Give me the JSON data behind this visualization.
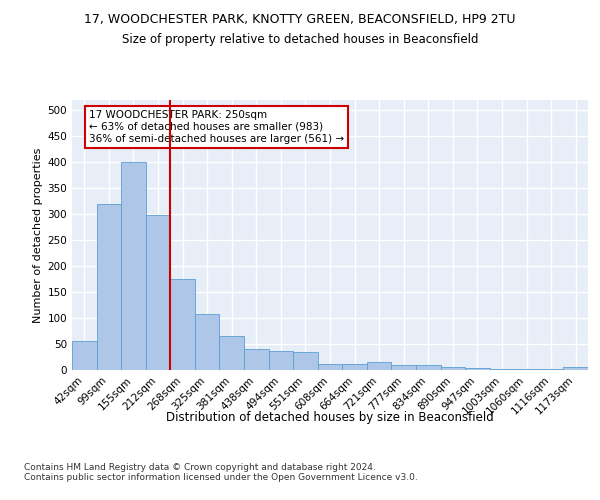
{
  "title": "17, WOODCHESTER PARK, KNOTTY GREEN, BEACONSFIELD, HP9 2TU",
  "subtitle": "Size of property relative to detached houses in Beaconsfield",
  "xlabel": "Distribution of detached houses by size in Beaconsfield",
  "ylabel": "Number of detached properties",
  "footnote": "Contains HM Land Registry data © Crown copyright and database right 2024.\nContains public sector information licensed under the Open Government Licence v3.0.",
  "bin_labels": [
    "42sqm",
    "99sqm",
    "155sqm",
    "212sqm",
    "268sqm",
    "325sqm",
    "381sqm",
    "438sqm",
    "494sqm",
    "551sqm",
    "608sqm",
    "664sqm",
    "721sqm",
    "777sqm",
    "834sqm",
    "890sqm",
    "947sqm",
    "1003sqm",
    "1060sqm",
    "1116sqm",
    "1173sqm"
  ],
  "bar_heights": [
    55,
    320,
    400,
    298,
    176,
    108,
    65,
    40,
    37,
    35,
    12,
    11,
    15,
    10,
    9,
    5,
    3,
    2,
    1,
    1,
    6
  ],
  "bar_color": "#aec6e8",
  "bar_edge_color": "#5a9fd4",
  "red_line_index": 4,
  "red_line_color": "#cc0000",
  "annotation_text": "17 WOODCHESTER PARK: 250sqm\n← 63% of detached houses are smaller (983)\n36% of semi-detached houses are larger (561) →",
  "annotation_box_color": "#ffffff",
  "annotation_box_edge": "#cc0000",
  "annotation_fontsize": 7.5,
  "ylim": [
    0,
    520
  ],
  "yticks": [
    0,
    50,
    100,
    150,
    200,
    250,
    300,
    350,
    400,
    450,
    500
  ],
  "plot_background": "#e8eef7",
  "grid_color": "#ffffff",
  "title_fontsize": 9,
  "subtitle_fontsize": 8.5,
  "xlabel_fontsize": 8.5,
  "ylabel_fontsize": 8,
  "tick_fontsize": 7.5,
  "footnote_fontsize": 6.5
}
